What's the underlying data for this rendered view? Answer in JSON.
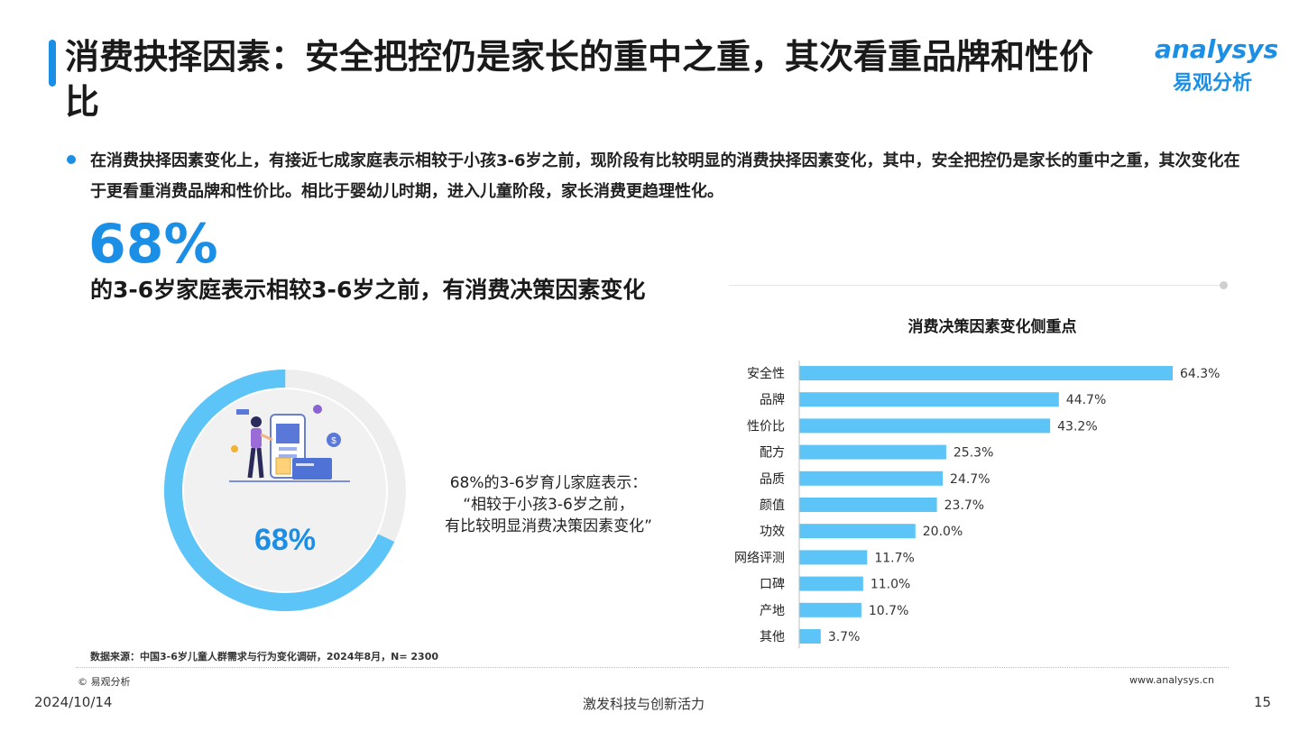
{
  "header": {
    "title": "消费抉择因素：安全把控仍是家长的重中之重，其次看重品牌和性价比",
    "logo_en": "analysys",
    "logo_cn": "易观分析"
  },
  "summary": {
    "bullet": "在消费抉择因素变化上，有接近七成家庭表示相较于小孩3-6岁之前，现阶段有比较明显的消费抉择因素变化，其中，安全把控仍是家长的重中之重，其次变化在于更看重消费品牌和性价比。相比于婴幼儿时期，进入儿童阶段，家长消费更趋理性化。",
    "big_pct": "68%",
    "big_sub": "的3-6岁家庭表示相较3-6岁之前，有消费决策因素变化"
  },
  "donut": {
    "value": 68,
    "label": "68%",
    "color_main": "#5cc4f7",
    "color_rest": "#eeeeee",
    "quote_lines": [
      "68%的3-6岁育儿家庭表示：",
      "“相较于小孩3-6岁之前，",
      "有比较明显消费决策因素变化”"
    ]
  },
  "chart_data": {
    "type": "bar",
    "orientation": "horizontal",
    "title": "消费决策因素变化侧重点",
    "categories": [
      "安全性",
      "品牌",
      "性价比",
      "配方",
      "品质",
      "颜值",
      "功效",
      "网络评测",
      "口碑",
      "产地",
      "其他"
    ],
    "values": [
      64.3,
      44.7,
      43.2,
      25.3,
      24.7,
      23.7,
      20.0,
      11.7,
      11.0,
      10.7,
      3.7
    ],
    "value_labels": [
      "64.3%",
      "44.7%",
      "43.2%",
      "25.3%",
      "24.7%",
      "23.7%",
      "20.0%",
      "11.7%",
      "11.0%",
      "10.7%",
      "3.7%"
    ],
    "bar_color": "#5cc4f7",
    "xlim": [
      0,
      64.3
    ],
    "grid": false
  },
  "footer": {
    "source": "数据来源：中国3-6岁儿童人群需求与行为变化调研，2024年8月，N= 2300",
    "copyright": "© 易观分析",
    "website": "www.analysys.cn",
    "date": "2024/10/14",
    "slogan": "激发科技与创新活力",
    "page": "15"
  }
}
